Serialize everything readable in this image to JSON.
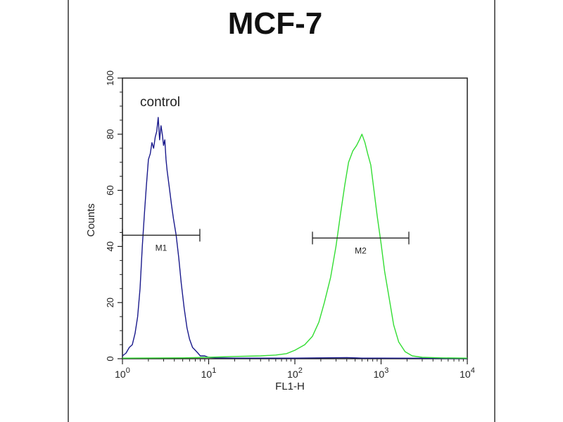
{
  "chart_data": {
    "type": "histogram",
    "title": "MCF-7",
    "xlabel": "FL1-H",
    "ylabel": "Counts",
    "x_scale": "log",
    "xlim": [
      1,
      10000
    ],
    "ylim": [
      0,
      100
    ],
    "x_ticks": [
      {
        "value": 1,
        "base": "10",
        "exp": "0"
      },
      {
        "value": 10,
        "base": "10",
        "exp": "1"
      },
      {
        "value": 100,
        "base": "10",
        "exp": "2"
      },
      {
        "value": 1000,
        "base": "10",
        "exp": "3"
      },
      {
        "value": 10000,
        "base": "10",
        "exp": "4"
      }
    ],
    "y_ticks": [
      0,
      20,
      40,
      60,
      80,
      100
    ],
    "annotation": {
      "text": "control",
      "x": 1.6,
      "y": 90
    },
    "gates": [
      {
        "label": "M1",
        "x_start": 1.0,
        "x_end": 7.9,
        "y": 44
      },
      {
        "label": "M2",
        "x_start": 160,
        "x_end": 2100,
        "y": 43
      }
    ],
    "series": [
      {
        "color": "#1a1a8c",
        "points": [
          {
            "x": 1.0,
            "y": 1
          },
          {
            "x": 1.1,
            "y": 2
          },
          {
            "x": 1.2,
            "y": 4
          },
          {
            "x": 1.3,
            "y": 5
          },
          {
            "x": 1.4,
            "y": 9
          },
          {
            "x": 1.5,
            "y": 15
          },
          {
            "x": 1.6,
            "y": 25
          },
          {
            "x": 1.7,
            "y": 40
          },
          {
            "x": 1.8,
            "y": 52
          },
          {
            "x": 1.9,
            "y": 62
          },
          {
            "x": 2.0,
            "y": 71
          },
          {
            "x": 2.1,
            "y": 73
          },
          {
            "x": 2.2,
            "y": 77
          },
          {
            "x": 2.3,
            "y": 75
          },
          {
            "x": 2.4,
            "y": 79
          },
          {
            "x": 2.5,
            "y": 81
          },
          {
            "x": 2.6,
            "y": 86
          },
          {
            "x": 2.7,
            "y": 78
          },
          {
            "x": 2.8,
            "y": 83
          },
          {
            "x": 2.9,
            "y": 80
          },
          {
            "x": 3.0,
            "y": 76
          },
          {
            "x": 3.1,
            "y": 78
          },
          {
            "x": 3.2,
            "y": 71
          },
          {
            "x": 3.3,
            "y": 67
          },
          {
            "x": 3.5,
            "y": 61
          },
          {
            "x": 3.7,
            "y": 55
          },
          {
            "x": 3.9,
            "y": 50
          },
          {
            "x": 4.2,
            "y": 44
          },
          {
            "x": 4.5,
            "y": 36
          },
          {
            "x": 4.8,
            "y": 27
          },
          {
            "x": 5.2,
            "y": 18
          },
          {
            "x": 5.6,
            "y": 11
          },
          {
            "x": 6.0,
            "y": 7
          },
          {
            "x": 6.5,
            "y": 4
          },
          {
            "x": 7.0,
            "y": 3
          },
          {
            "x": 7.5,
            "y": 2
          },
          {
            "x": 8.0,
            "y": 1
          },
          {
            "x": 9.0,
            "y": 1
          },
          {
            "x": 10,
            "y": 0.5
          },
          {
            "x": 12,
            "y": 0.3
          },
          {
            "x": 20,
            "y": 0.2
          },
          {
            "x": 100,
            "y": 0.2
          },
          {
            "x": 400,
            "y": 0.4
          },
          {
            "x": 600,
            "y": 0.2
          },
          {
            "x": 1000,
            "y": 0.2
          },
          {
            "x": 10000,
            "y": 0.1
          }
        ]
      },
      {
        "color": "#33dd33",
        "points": [
          {
            "x": 1,
            "y": 0.2
          },
          {
            "x": 5,
            "y": 0.3
          },
          {
            "x": 10,
            "y": 0.5
          },
          {
            "x": 20,
            "y": 0.8
          },
          {
            "x": 40,
            "y": 1
          },
          {
            "x": 60,
            "y": 1.3
          },
          {
            "x": 80,
            "y": 1.8
          },
          {
            "x": 100,
            "y": 3
          },
          {
            "x": 130,
            "y": 5
          },
          {
            "x": 160,
            "y": 8
          },
          {
            "x": 190,
            "y": 13
          },
          {
            "x": 220,
            "y": 20
          },
          {
            "x": 260,
            "y": 29
          },
          {
            "x": 300,
            "y": 40
          },
          {
            "x": 340,
            "y": 52
          },
          {
            "x": 380,
            "y": 62
          },
          {
            "x": 420,
            "y": 70
          },
          {
            "x": 470,
            "y": 74
          },
          {
            "x": 520,
            "y": 76
          },
          {
            "x": 560,
            "y": 78
          },
          {
            "x": 600,
            "y": 80
          },
          {
            "x": 650,
            "y": 77
          },
          {
            "x": 700,
            "y": 73
          },
          {
            "x": 760,
            "y": 69
          },
          {
            "x": 820,
            "y": 61
          },
          {
            "x": 900,
            "y": 51
          },
          {
            "x": 1000,
            "y": 41
          },
          {
            "x": 1100,
            "y": 31
          },
          {
            "x": 1250,
            "y": 21
          },
          {
            "x": 1400,
            "y": 12
          },
          {
            "x": 1600,
            "y": 6
          },
          {
            "x": 1900,
            "y": 2.5
          },
          {
            "x": 2300,
            "y": 1
          },
          {
            "x": 3000,
            "y": 0.5
          },
          {
            "x": 5000,
            "y": 0.3
          },
          {
            "x": 10000,
            "y": 0.2
          }
        ]
      }
    ]
  }
}
